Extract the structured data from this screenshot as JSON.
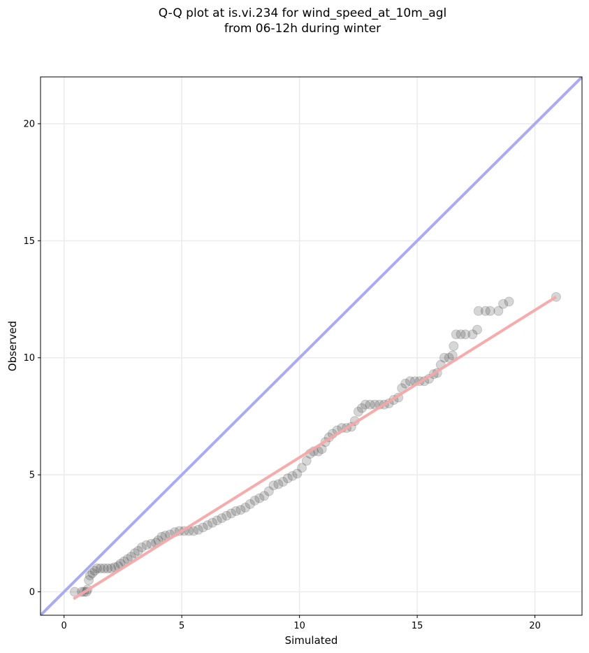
{
  "title_lines": [
    "Q-Q plot at is.vi.234 for wind_speed_at_10m_agl",
    "from 06-12h during winter"
  ],
  "chart_data": {
    "type": "scatter",
    "xlabel": "Simulated",
    "ylabel": "Observed",
    "xlim": [
      -1,
      22
    ],
    "ylim": [
      -1,
      22
    ],
    "xticks": [
      0,
      5,
      10,
      15,
      20
    ],
    "yticks": [
      0,
      5,
      10,
      15,
      20
    ],
    "grid": true,
    "colors": {
      "points": "#333333",
      "identity_line": "#aaaaf5",
      "fit_line": "#f5a8a8",
      "grid": "#ebebeb"
    },
    "identity_line": {
      "x": [
        -1,
        22
      ],
      "y": [
        -1,
        22
      ]
    },
    "fit_line": {
      "x": [
        0.4,
        20.9
      ],
      "y": [
        -0.3,
        12.6
      ]
    },
    "points": [
      [
        0.45,
        0.0
      ],
      [
        0.75,
        0.0
      ],
      [
        0.85,
        0.0
      ],
      [
        0.95,
        0.0
      ],
      [
        1.0,
        0.1
      ],
      [
        1.05,
        0.5
      ],
      [
        1.1,
        0.7
      ],
      [
        1.2,
        0.8
      ],
      [
        1.3,
        0.9
      ],
      [
        1.4,
        1.0
      ],
      [
        1.55,
        1.0
      ],
      [
        1.7,
        1.0
      ],
      [
        1.85,
        1.0
      ],
      [
        2.0,
        1.0
      ],
      [
        2.15,
        1.05
      ],
      [
        2.3,
        1.1
      ],
      [
        2.4,
        1.2
      ],
      [
        2.55,
        1.3
      ],
      [
        2.7,
        1.4
      ],
      [
        2.85,
        1.5
      ],
      [
        3.0,
        1.65
      ],
      [
        3.15,
        1.75
      ],
      [
        3.3,
        1.9
      ],
      [
        3.5,
        2.0
      ],
      [
        3.7,
        2.05
      ],
      [
        3.9,
        2.1
      ],
      [
        4.0,
        2.2
      ],
      [
        4.15,
        2.35
      ],
      [
        4.3,
        2.4
      ],
      [
        4.5,
        2.45
      ],
      [
        4.7,
        2.55
      ],
      [
        4.9,
        2.6
      ],
      [
        5.1,
        2.6
      ],
      [
        5.3,
        2.6
      ],
      [
        5.5,
        2.6
      ],
      [
        5.7,
        2.65
      ],
      [
        5.9,
        2.75
      ],
      [
        6.1,
        2.85
      ],
      [
        6.3,
        2.95
      ],
      [
        6.5,
        3.05
      ],
      [
        6.7,
        3.15
      ],
      [
        6.9,
        3.25
      ],
      [
        7.1,
        3.35
      ],
      [
        7.3,
        3.45
      ],
      [
        7.5,
        3.5
      ],
      [
        7.7,
        3.6
      ],
      [
        7.9,
        3.75
      ],
      [
        8.1,
        3.9
      ],
      [
        8.3,
        4.0
      ],
      [
        8.5,
        4.1
      ],
      [
        8.7,
        4.3
      ],
      [
        8.9,
        4.55
      ],
      [
        9.1,
        4.6
      ],
      [
        9.3,
        4.7
      ],
      [
        9.5,
        4.85
      ],
      [
        9.7,
        4.95
      ],
      [
        9.9,
        5.05
      ],
      [
        10.1,
        5.3
      ],
      [
        10.3,
        5.6
      ],
      [
        10.45,
        5.9
      ],
      [
        10.6,
        6.0
      ],
      [
        10.8,
        6.0
      ],
      [
        10.95,
        6.1
      ],
      [
        11.1,
        6.4
      ],
      [
        11.25,
        6.6
      ],
      [
        11.4,
        6.75
      ],
      [
        11.6,
        6.9
      ],
      [
        11.8,
        7.0
      ],
      [
        12.0,
        7.0
      ],
      [
        12.2,
        7.05
      ],
      [
        12.35,
        7.3
      ],
      [
        12.5,
        7.7
      ],
      [
        12.65,
        7.85
      ],
      [
        12.8,
        8.0
      ],
      [
        13.0,
        8.0
      ],
      [
        13.2,
        8.0
      ],
      [
        13.4,
        8.0
      ],
      [
        13.6,
        8.0
      ],
      [
        13.8,
        8.05
      ],
      [
        14.0,
        8.2
      ],
      [
        14.2,
        8.3
      ],
      [
        14.35,
        8.7
      ],
      [
        14.5,
        8.9
      ],
      [
        14.7,
        9.0
      ],
      [
        14.9,
        9.0
      ],
      [
        15.1,
        9.0
      ],
      [
        15.3,
        9.0
      ],
      [
        15.5,
        9.1
      ],
      [
        15.7,
        9.3
      ],
      [
        15.85,
        9.35
      ],
      [
        16.0,
        9.7
      ],
      [
        16.15,
        10.0
      ],
      [
        16.35,
        10.0
      ],
      [
        16.5,
        10.1
      ],
      [
        16.55,
        10.5
      ],
      [
        16.65,
        11.0
      ],
      [
        16.85,
        11.0
      ],
      [
        17.05,
        11.0
      ],
      [
        17.35,
        11.0
      ],
      [
        17.55,
        11.2
      ],
      [
        17.6,
        12.0
      ],
      [
        17.9,
        12.0
      ],
      [
        18.1,
        12.0
      ],
      [
        18.45,
        12.0
      ],
      [
        18.65,
        12.3
      ],
      [
        18.9,
        12.4
      ],
      [
        20.9,
        12.6
      ]
    ]
  }
}
